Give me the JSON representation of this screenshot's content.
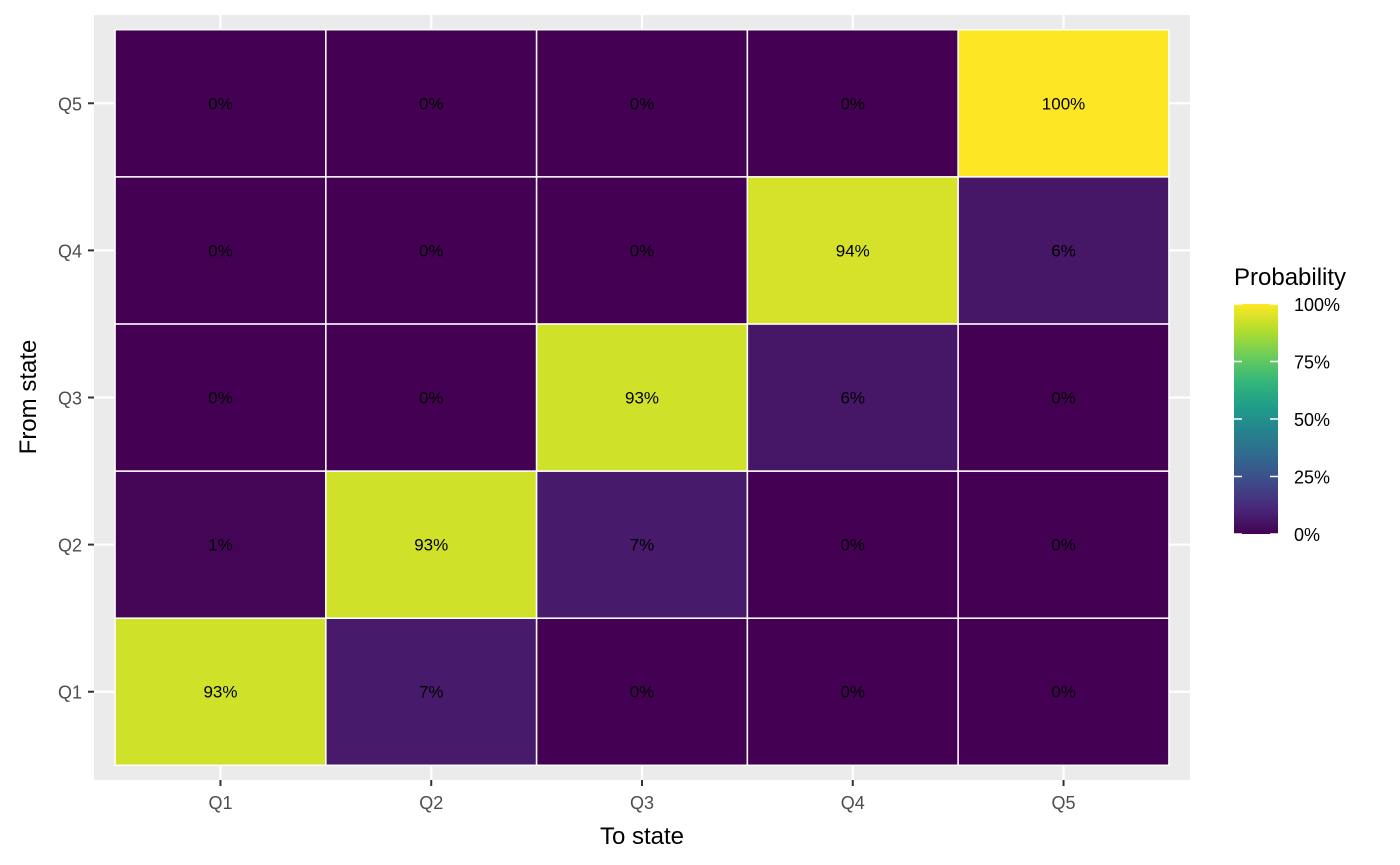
{
  "chart_data": {
    "type": "heatmap",
    "x_categories": [
      "Q1",
      "Q2",
      "Q3",
      "Q4",
      "Q5"
    ],
    "y_categories": [
      "Q1",
      "Q2",
      "Q3",
      "Q4",
      "Q5"
    ],
    "xlabel": "To state",
    "ylabel": "From state",
    "cells": [
      {
        "from": "Q1",
        "to": "Q1",
        "value": 0.93,
        "label": "93%"
      },
      {
        "from": "Q1",
        "to": "Q2",
        "value": 0.07,
        "label": "7%"
      },
      {
        "from": "Q1",
        "to": "Q3",
        "value": 0.0,
        "label": "0%"
      },
      {
        "from": "Q1",
        "to": "Q4",
        "value": 0.0,
        "label": "0%"
      },
      {
        "from": "Q1",
        "to": "Q5",
        "value": 0.0,
        "label": "0%"
      },
      {
        "from": "Q2",
        "to": "Q1",
        "value": 0.01,
        "label": "1%"
      },
      {
        "from": "Q2",
        "to": "Q2",
        "value": 0.93,
        "label": "93%"
      },
      {
        "from": "Q2",
        "to": "Q3",
        "value": 0.07,
        "label": "7%"
      },
      {
        "from": "Q2",
        "to": "Q4",
        "value": 0.0,
        "label": "0%"
      },
      {
        "from": "Q2",
        "to": "Q5",
        "value": 0.0,
        "label": "0%"
      },
      {
        "from": "Q3",
        "to": "Q1",
        "value": 0.0,
        "label": "0%"
      },
      {
        "from": "Q3",
        "to": "Q2",
        "value": 0.0,
        "label": "0%"
      },
      {
        "from": "Q3",
        "to": "Q3",
        "value": 0.93,
        "label": "93%"
      },
      {
        "from": "Q3",
        "to": "Q4",
        "value": 0.06,
        "label": "6%"
      },
      {
        "from": "Q3",
        "to": "Q5",
        "value": 0.0,
        "label": "0%"
      },
      {
        "from": "Q4",
        "to": "Q1",
        "value": 0.0,
        "label": "0%"
      },
      {
        "from": "Q4",
        "to": "Q2",
        "value": 0.0,
        "label": "0%"
      },
      {
        "from": "Q4",
        "to": "Q3",
        "value": 0.0,
        "label": "0%"
      },
      {
        "from": "Q4",
        "to": "Q4",
        "value": 0.94,
        "label": "94%"
      },
      {
        "from": "Q4",
        "to": "Q5",
        "value": 0.06,
        "label": "6%"
      },
      {
        "from": "Q5",
        "to": "Q1",
        "value": 0.0,
        "label": "0%"
      },
      {
        "from": "Q5",
        "to": "Q2",
        "value": 0.0,
        "label": "0%"
      },
      {
        "from": "Q5",
        "to": "Q3",
        "value": 0.0,
        "label": "0%"
      },
      {
        "from": "Q5",
        "to": "Q4",
        "value": 0.0,
        "label": "0%"
      },
      {
        "from": "Q5",
        "to": "Q5",
        "value": 1.0,
        "label": "100%"
      }
    ],
    "legend": {
      "title": "Probability",
      "placement": "right",
      "ticks": [
        {
          "value": 1.0,
          "label": "100%"
        },
        {
          "value": 0.75,
          "label": "75%"
        },
        {
          "value": 0.5,
          "label": "50%"
        },
        {
          "value": 0.25,
          "label": "25%"
        },
        {
          "value": 0.0,
          "label": "0%"
        }
      ]
    },
    "color_scale": "viridis",
    "value_range": [
      0,
      1
    ],
    "grid": true,
    "colors": {
      "panel_background": "#EBEBEB",
      "grid_line": "#FFFFFF",
      "tile_border": "#FFFFFF"
    }
  }
}
